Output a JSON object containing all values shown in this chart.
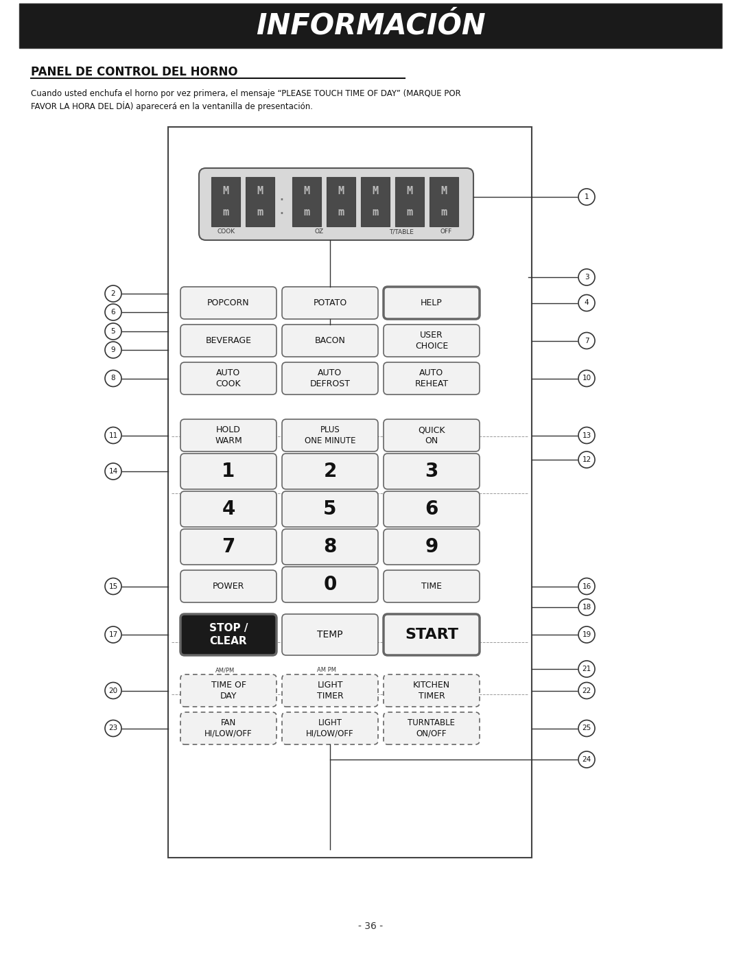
{
  "title": "INFORMACIÓN",
  "section_title": "PANEL DE CONTROL DEL HORNO",
  "body_text_1": "Cuando usted enchufa el horno por vez primera, el mensaje “PLEASE TOUCH TIME OF DAY” (MARQUE POR",
  "body_text_2": "FAVOR LA HORA DEL DÍA) aparecerá en la ventanilla de presentación.",
  "page_number": "- 36 -",
  "bg_color": "#ffffff",
  "title_bg": "#1a1a1a",
  "title_color": "#ffffff",
  "button_bg": "#f2f2f2",
  "button_border": "#666666",
  "button_dark_bg": "#1a1a1a",
  "button_dark_color": "#ffffff",
  "panel_border": "#444444"
}
